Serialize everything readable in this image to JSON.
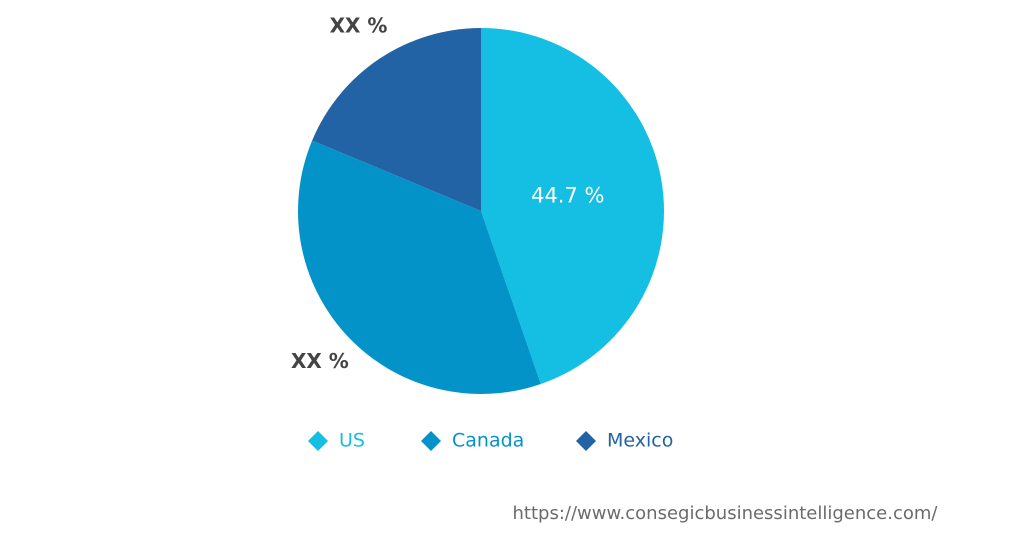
{
  "chart_data": {
    "type": "pie",
    "categories": [
      "US",
      "Canada",
      "Mexico"
    ],
    "values": [
      44.7,
      36.6,
      18.7
    ],
    "value_labels": [
      "44.7 %",
      "XX %",
      "XX %"
    ],
    "colors": [
      "#14bfe3",
      "#0393c9",
      "#2263a5"
    ]
  },
  "footer": {
    "url": "https://www.consegicbusinessintelligence.com/"
  }
}
